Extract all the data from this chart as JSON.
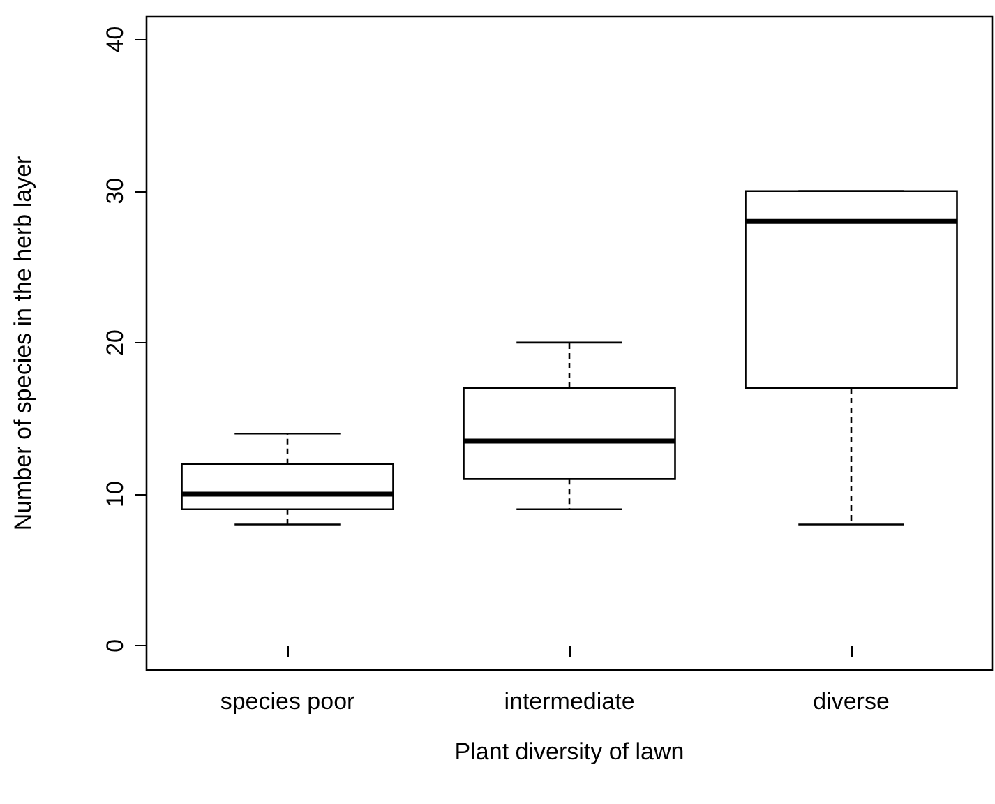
{
  "chart_data": {
    "type": "box",
    "xlabel": "Plant diversity of lawn",
    "ylabel": "Number of species in the herb layer",
    "categories": [
      "species poor",
      "intermediate",
      "diverse"
    ],
    "boxes": [
      {
        "low": 8,
        "q1": 9,
        "median": 10,
        "q3": 12,
        "high": 14
      },
      {
        "low": 9,
        "q1": 11,
        "median": 13.5,
        "q3": 17,
        "high": 20
      },
      {
        "low": 8,
        "q1": 17,
        "median": 28,
        "q3": 30,
        "high": 30
      }
    ],
    "ylim": [
      -1.6,
      41.5
    ],
    "yticks": [
      0,
      10,
      20,
      30,
      40
    ],
    "grid": false
  }
}
